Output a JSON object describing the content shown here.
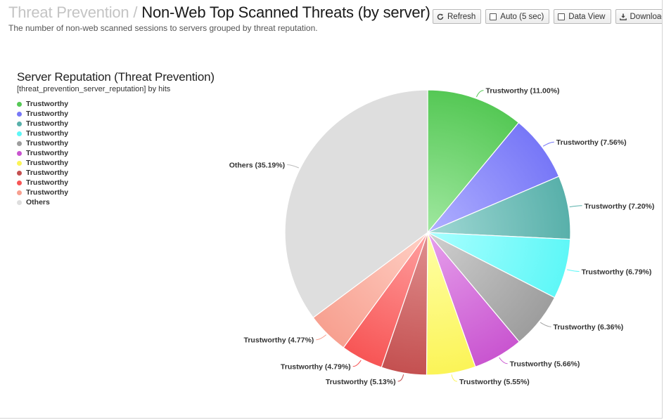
{
  "header": {
    "breadcrumb": "Threat Prevention",
    "separator": "/",
    "title": "Non-Web Top Scanned Threats (by server)",
    "description": "The number of non-web scanned sessions to servers grouped by threat reputation."
  },
  "toolbar": {
    "refresh_label": "Refresh",
    "auto_label": "Auto (5 sec)",
    "dataview_label": "Data View",
    "download_label": "Download"
  },
  "colors": {
    "slices": [
      "#55c855",
      "#7777f7",
      "#58b0aa",
      "#5ef7f7",
      "#9d9d9d",
      "#c955d0",
      "#fbf457",
      "#c45050",
      "#f75555",
      "#f7a090",
      "#dedede"
    ],
    "gradient_light": [
      "#a0e8a0",
      "#b0b0ff",
      "#a0d8d4",
      "#a8ffff",
      "#d0d0d0",
      "#e6a0ec",
      "#ffffa8",
      "#e09090",
      "#ffa0a0",
      "#ffcfc4",
      "#dedede"
    ]
  },
  "chart_data": {
    "type": "pie",
    "title": "Server Reputation (Threat Prevention)",
    "subtitle": "[threat_prevention_server_reputation] by hits",
    "legend_position": "top-left",
    "slices": [
      {
        "name": "Trustworthy",
        "label": "Trustworthy (11.00%)",
        "value": 11.0
      },
      {
        "name": "Trustworthy",
        "label": "Trustworthy (7.56%)",
        "value": 7.56
      },
      {
        "name": "Trustworthy",
        "label": "Trustworthy (7.20%)",
        "value": 7.2
      },
      {
        "name": "Trustworthy",
        "label": "Trustworthy (6.79%)",
        "value": 6.79
      },
      {
        "name": "Trustworthy",
        "label": "Trustworthy (6.36%)",
        "value": 6.36
      },
      {
        "name": "Trustworthy",
        "label": "Trustworthy (5.66%)",
        "value": 5.66
      },
      {
        "name": "Trustworthy",
        "label": "Trustworthy (5.55%)",
        "value": 5.55
      },
      {
        "name": "Trustworthy",
        "label": "Trustworthy (5.13%)",
        "value": 5.13
      },
      {
        "name": "Trustworthy",
        "label": "Trustworthy (4.79%)",
        "value": 4.79
      },
      {
        "name": "Trustworthy",
        "label": "Trustworthy (4.77%)",
        "value": 4.77
      },
      {
        "name": "Others",
        "label": "Others (35.19%)",
        "value": 35.19
      }
    ]
  }
}
